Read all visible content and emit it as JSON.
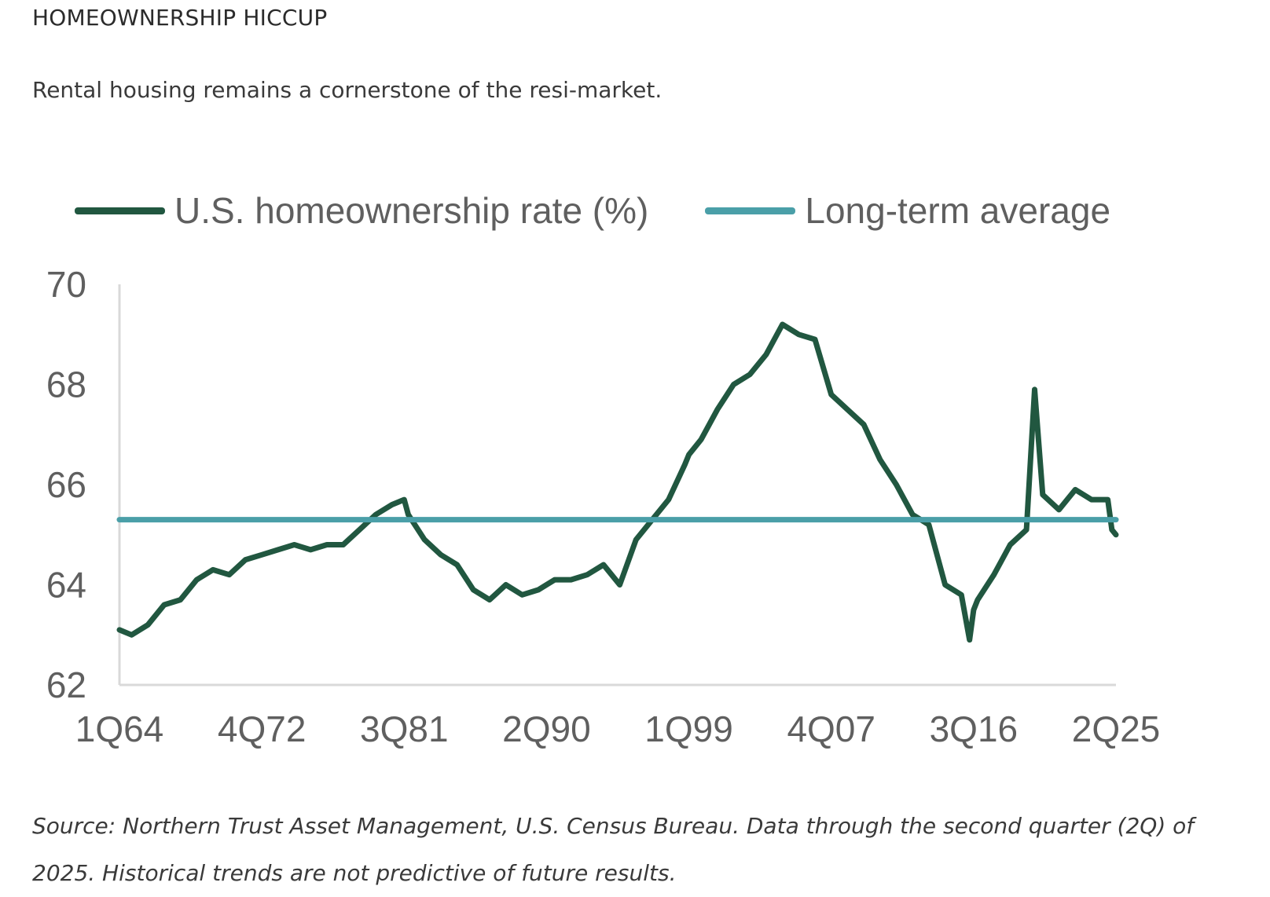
{
  "header": {
    "title": "HOMEOWNERSHIP HICCUP",
    "subtitle": "Rental housing remains a cornerstone of the resi-market."
  },
  "footer": {
    "source": "Source: Northern Trust Asset Management, U.S. Census Bureau. Data through the second quarter (2Q) of 2025. Historical trends are not predictive of future results."
  },
  "colors": {
    "rate_line": "#215740",
    "average_line": "#4a9fa8",
    "axis": "#d9d9d9",
    "tick_text": "#5f5f5f"
  },
  "chart_data": {
    "type": "line",
    "title": "",
    "xlabel": "",
    "ylabel": "",
    "ylim": [
      62,
      70
    ],
    "yticks": [
      62,
      64,
      66,
      68,
      70
    ],
    "grid": false,
    "legend_position": "top",
    "x_tick_labels": [
      "1Q64",
      "4Q72",
      "3Q81",
      "2Q90",
      "1Q99",
      "4Q07",
      "3Q16",
      "2Q25"
    ],
    "x_range": [
      "1Q64",
      "2Q25"
    ],
    "series": [
      {
        "name": "U.S. homeownership rate (%)",
        "color": "#215740",
        "points": [
          [
            "1Q64",
            63.1
          ],
          [
            "4Q64",
            63.0
          ],
          [
            "4Q65",
            63.2
          ],
          [
            "4Q66",
            63.6
          ],
          [
            "4Q67",
            63.7
          ],
          [
            "4Q68",
            64.1
          ],
          [
            "4Q69",
            64.3
          ],
          [
            "4Q70",
            64.2
          ],
          [
            "4Q71",
            64.5
          ],
          [
            "4Q72",
            64.6
          ],
          [
            "4Q73",
            64.7
          ],
          [
            "4Q74",
            64.8
          ],
          [
            "4Q75",
            64.7
          ],
          [
            "4Q76",
            64.8
          ],
          [
            "4Q77",
            64.8
          ],
          [
            "4Q78",
            65.1
          ],
          [
            "4Q79",
            65.4
          ],
          [
            "4Q80",
            65.6
          ],
          [
            "3Q81",
            65.7
          ],
          [
            "4Q81",
            65.4
          ],
          [
            "4Q82",
            64.9
          ],
          [
            "4Q83",
            64.6
          ],
          [
            "4Q84",
            64.4
          ],
          [
            "4Q85",
            63.9
          ],
          [
            "4Q86",
            63.7
          ],
          [
            "4Q87",
            64.0
          ],
          [
            "4Q88",
            63.8
          ],
          [
            "4Q89",
            63.9
          ],
          [
            "2Q90",
            64.0
          ],
          [
            "4Q90",
            64.1
          ],
          [
            "4Q91",
            64.1
          ],
          [
            "4Q92",
            64.2
          ],
          [
            "4Q93",
            64.4
          ],
          [
            "4Q94",
            64.0
          ],
          [
            "4Q95",
            64.9
          ],
          [
            "4Q96",
            65.3
          ],
          [
            "4Q97",
            65.7
          ],
          [
            "4Q98",
            66.4
          ],
          [
            "1Q99",
            66.6
          ],
          [
            "4Q99",
            66.9
          ],
          [
            "4Q00",
            67.5
          ],
          [
            "4Q01",
            68.0
          ],
          [
            "4Q02",
            68.2
          ],
          [
            "4Q03",
            68.6
          ],
          [
            "4Q04",
            69.2
          ],
          [
            "4Q05",
            69.0
          ],
          [
            "4Q06",
            68.9
          ],
          [
            "4Q07",
            67.8
          ],
          [
            "4Q08",
            67.5
          ],
          [
            "4Q09",
            67.2
          ],
          [
            "4Q10",
            66.5
          ],
          [
            "4Q11",
            66.0
          ],
          [
            "4Q12",
            65.4
          ],
          [
            "4Q13",
            65.2
          ],
          [
            "4Q14",
            64.0
          ],
          [
            "4Q15",
            63.8
          ],
          [
            "2Q16",
            62.9
          ],
          [
            "3Q16",
            63.5
          ],
          [
            "4Q16",
            63.7
          ],
          [
            "4Q17",
            64.2
          ],
          [
            "4Q18",
            64.8
          ],
          [
            "4Q19",
            65.1
          ],
          [
            "2Q20",
            67.9
          ],
          [
            "4Q20",
            65.8
          ],
          [
            "4Q21",
            65.5
          ],
          [
            "4Q22",
            65.9
          ],
          [
            "4Q23",
            65.7
          ],
          [
            "4Q24",
            65.7
          ],
          [
            "1Q25",
            65.1
          ],
          [
            "2Q25",
            65.0
          ]
        ]
      },
      {
        "name": "Long-term average",
        "color": "#4a9fa8",
        "points": [
          [
            "1Q64",
            65.3
          ],
          [
            "2Q25",
            65.3
          ]
        ]
      }
    ]
  }
}
